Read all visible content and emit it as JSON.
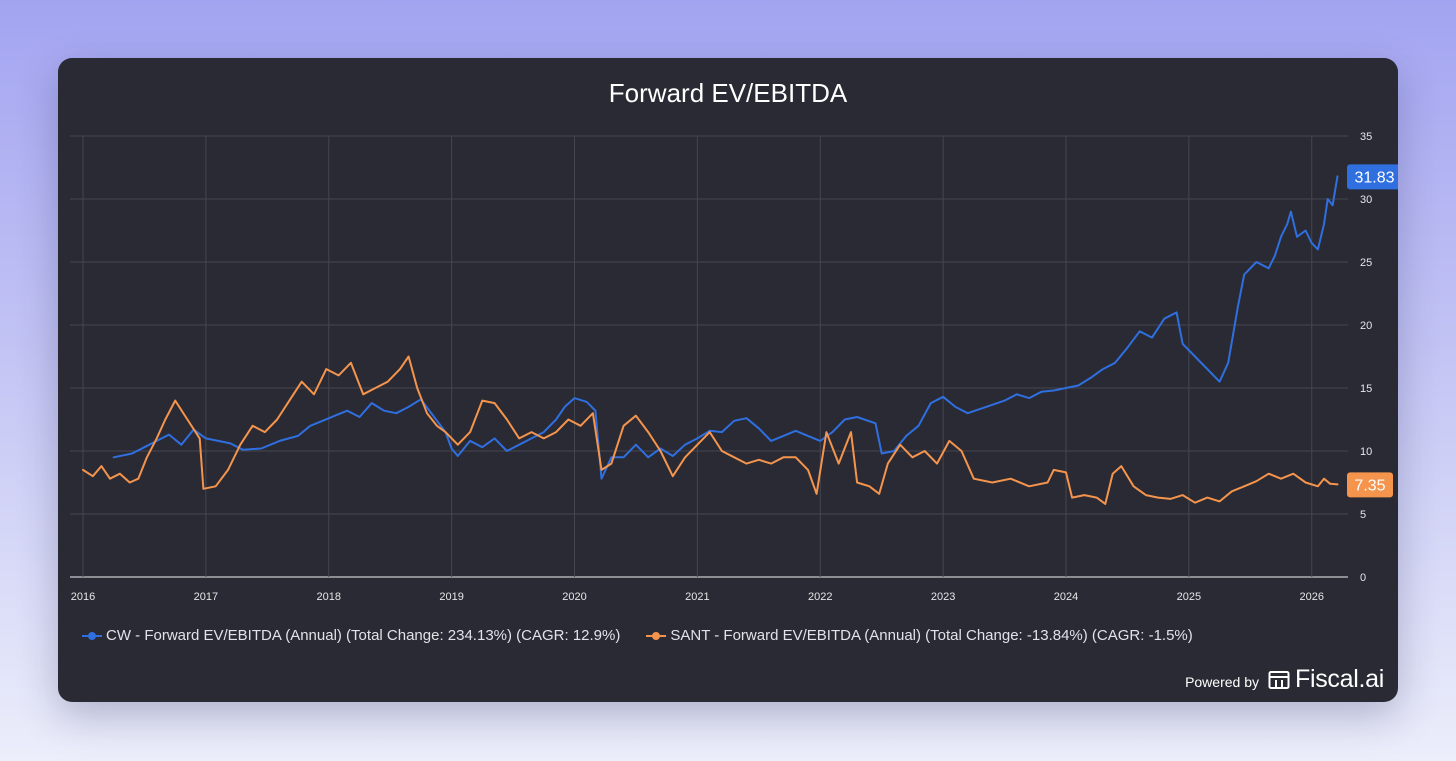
{
  "chart_data": {
    "type": "line",
    "title": "Forward EV/EBITDA",
    "xlabel": "",
    "ylabel": "",
    "xlim": [
      2016.0,
      2026.23
    ],
    "ylim": [
      0,
      35
    ],
    "x_ticks": [
      "2016",
      "2017",
      "2018",
      "2019",
      "2020",
      "2021",
      "2022",
      "2023",
      "2024",
      "2025",
      "2026"
    ],
    "y_ticks": [
      "0",
      "5",
      "10",
      "15",
      "20",
      "25",
      "30",
      "35"
    ],
    "grid": true,
    "legend_position": "bottom-left",
    "series": [
      {
        "name": "CW - Forward EV/EBITDA (Annual) (Total Change: 234.13%) (CAGR: 12.9%)",
        "color": "#2f6fe0",
        "last_value_label": "31.83",
        "points": [
          [
            2016.25,
            9.5
          ],
          [
            2016.4,
            9.8
          ],
          [
            2016.5,
            10.3
          ],
          [
            2016.6,
            10.8
          ],
          [
            2016.7,
            11.3
          ],
          [
            2016.8,
            10.5
          ],
          [
            2016.9,
            11.7
          ],
          [
            2017.0,
            11.0
          ],
          [
            2017.1,
            10.8
          ],
          [
            2017.2,
            10.6
          ],
          [
            2017.3,
            10.1
          ],
          [
            2017.45,
            10.2
          ],
          [
            2017.6,
            10.8
          ],
          [
            2017.75,
            11.2
          ],
          [
            2017.85,
            12.0
          ],
          [
            2017.95,
            12.4
          ],
          [
            2018.05,
            12.8
          ],
          [
            2018.15,
            13.2
          ],
          [
            2018.25,
            12.7
          ],
          [
            2018.35,
            13.8
          ],
          [
            2018.45,
            13.2
          ],
          [
            2018.55,
            13.0
          ],
          [
            2018.65,
            13.5
          ],
          [
            2018.75,
            14.1
          ],
          [
            2018.85,
            12.8
          ],
          [
            2018.95,
            11.5
          ],
          [
            2019.0,
            10.2
          ],
          [
            2019.05,
            9.6
          ],
          [
            2019.15,
            10.8
          ],
          [
            2019.25,
            10.3
          ],
          [
            2019.35,
            11.0
          ],
          [
            2019.45,
            10.0
          ],
          [
            2019.55,
            10.5
          ],
          [
            2019.65,
            11.0
          ],
          [
            2019.75,
            11.5
          ],
          [
            2019.85,
            12.5
          ],
          [
            2019.92,
            13.5
          ],
          [
            2020.0,
            14.2
          ],
          [
            2020.1,
            13.9
          ],
          [
            2020.17,
            13.2
          ],
          [
            2020.22,
            7.8
          ],
          [
            2020.3,
            9.5
          ],
          [
            2020.4,
            9.5
          ],
          [
            2020.5,
            10.5
          ],
          [
            2020.6,
            9.5
          ],
          [
            2020.7,
            10.2
          ],
          [
            2020.8,
            9.6
          ],
          [
            2020.9,
            10.5
          ],
          [
            2021.0,
            11.0
          ],
          [
            2021.1,
            11.6
          ],
          [
            2021.2,
            11.5
          ],
          [
            2021.3,
            12.4
          ],
          [
            2021.4,
            12.6
          ],
          [
            2021.5,
            11.8
          ],
          [
            2021.6,
            10.8
          ],
          [
            2021.7,
            11.2
          ],
          [
            2021.8,
            11.6
          ],
          [
            2021.9,
            11.2
          ],
          [
            2022.0,
            10.8
          ],
          [
            2022.1,
            11.5
          ],
          [
            2022.2,
            12.5
          ],
          [
            2022.3,
            12.7
          ],
          [
            2022.45,
            12.2
          ],
          [
            2022.5,
            9.8
          ],
          [
            2022.6,
            10.0
          ],
          [
            2022.7,
            11.2
          ],
          [
            2022.8,
            12.0
          ],
          [
            2022.9,
            13.8
          ],
          [
            2023.0,
            14.3
          ],
          [
            2023.1,
            13.5
          ],
          [
            2023.2,
            13.0
          ],
          [
            2023.35,
            13.5
          ],
          [
            2023.5,
            14.0
          ],
          [
            2023.6,
            14.5
          ],
          [
            2023.7,
            14.2
          ],
          [
            2023.8,
            14.7
          ],
          [
            2023.9,
            14.8
          ],
          [
            2024.0,
            15.0
          ],
          [
            2024.1,
            15.2
          ],
          [
            2024.2,
            15.8
          ],
          [
            2024.3,
            16.5
          ],
          [
            2024.4,
            17.0
          ],
          [
            2024.5,
            18.2
          ],
          [
            2024.6,
            19.5
          ],
          [
            2024.7,
            19.0
          ],
          [
            2024.8,
            20.5
          ],
          [
            2024.9,
            21.0
          ],
          [
            2024.95,
            18.5
          ],
          [
            2025.05,
            17.5
          ],
          [
            2025.15,
            16.5
          ],
          [
            2025.25,
            15.5
          ],
          [
            2025.32,
            17.0
          ],
          [
            2025.4,
            21.5
          ],
          [
            2025.45,
            24.0
          ],
          [
            2025.55,
            25.0
          ],
          [
            2025.65,
            24.5
          ],
          [
            2025.7,
            25.5
          ],
          [
            2025.75,
            27.0
          ],
          [
            2025.8,
            28.0
          ],
          [
            2025.83,
            29.0
          ],
          [
            2025.88,
            27.0
          ],
          [
            2025.95,
            27.5
          ],
          [
            2026.0,
            26.5
          ],
          [
            2026.05,
            26.0
          ],
          [
            2026.1,
            28.0
          ],
          [
            2026.13,
            30.0
          ],
          [
            2026.17,
            29.5
          ],
          [
            2026.21,
            31.8
          ]
        ]
      },
      {
        "name": "SANT - Forward EV/EBITDA (Annual) (Total Change: -13.84%) (CAGR: -1.5%)",
        "color": "#f5944d",
        "last_value_label": "7.35",
        "points": [
          [
            2016.0,
            8.5
          ],
          [
            2016.08,
            8.0
          ],
          [
            2016.15,
            8.8
          ],
          [
            2016.22,
            7.8
          ],
          [
            2016.3,
            8.2
          ],
          [
            2016.38,
            7.5
          ],
          [
            2016.45,
            7.8
          ],
          [
            2016.52,
            9.5
          ],
          [
            2016.6,
            11.0
          ],
          [
            2016.67,
            12.5
          ],
          [
            2016.75,
            14.0
          ],
          [
            2016.85,
            12.5
          ],
          [
            2016.95,
            11.0
          ],
          [
            2016.98,
            7.0
          ],
          [
            2017.08,
            7.2
          ],
          [
            2017.18,
            8.5
          ],
          [
            2017.28,
            10.5
          ],
          [
            2017.38,
            12.0
          ],
          [
            2017.48,
            11.5
          ],
          [
            2017.58,
            12.5
          ],
          [
            2017.68,
            14.0
          ],
          [
            2017.78,
            15.5
          ],
          [
            2017.88,
            14.5
          ],
          [
            2017.98,
            16.5
          ],
          [
            2018.08,
            16.0
          ],
          [
            2018.18,
            17.0
          ],
          [
            2018.28,
            14.5
          ],
          [
            2018.38,
            15.0
          ],
          [
            2018.48,
            15.5
          ],
          [
            2018.58,
            16.5
          ],
          [
            2018.65,
            17.5
          ],
          [
            2018.72,
            15.0
          ],
          [
            2018.8,
            13.0
          ],
          [
            2018.88,
            12.0
          ],
          [
            2018.95,
            11.5
          ],
          [
            2019.05,
            10.5
          ],
          [
            2019.15,
            11.5
          ],
          [
            2019.25,
            14.0
          ],
          [
            2019.35,
            13.8
          ],
          [
            2019.45,
            12.5
          ],
          [
            2019.55,
            11.0
          ],
          [
            2019.65,
            11.5
          ],
          [
            2019.75,
            11.0
          ],
          [
            2019.85,
            11.5
          ],
          [
            2019.95,
            12.5
          ],
          [
            2020.05,
            12.0
          ],
          [
            2020.15,
            13.0
          ],
          [
            2020.22,
            8.5
          ],
          [
            2020.3,
            9.0
          ],
          [
            2020.4,
            12.0
          ],
          [
            2020.5,
            12.8
          ],
          [
            2020.6,
            11.5
          ],
          [
            2020.7,
            10.0
          ],
          [
            2020.8,
            8.0
          ],
          [
            2020.9,
            9.5
          ],
          [
            2021.0,
            10.5
          ],
          [
            2021.1,
            11.5
          ],
          [
            2021.2,
            10.0
          ],
          [
            2021.3,
            9.5
          ],
          [
            2021.4,
            9.0
          ],
          [
            2021.5,
            9.3
          ],
          [
            2021.6,
            9.0
          ],
          [
            2021.7,
            9.5
          ],
          [
            2021.8,
            9.5
          ],
          [
            2021.9,
            8.5
          ],
          [
            2021.97,
            6.6
          ],
          [
            2022.05,
            11.5
          ],
          [
            2022.15,
            9.0
          ],
          [
            2022.25,
            11.5
          ],
          [
            2022.3,
            7.5
          ],
          [
            2022.4,
            7.2
          ],
          [
            2022.48,
            6.6
          ],
          [
            2022.55,
            9.0
          ],
          [
            2022.65,
            10.5
          ],
          [
            2022.75,
            9.5
          ],
          [
            2022.85,
            10.0
          ],
          [
            2022.95,
            9.0
          ],
          [
            2023.05,
            10.8
          ],
          [
            2023.15,
            10.0
          ],
          [
            2023.25,
            7.8
          ],
          [
            2023.4,
            7.5
          ],
          [
            2023.55,
            7.8
          ],
          [
            2023.7,
            7.2
          ],
          [
            2023.85,
            7.5
          ],
          [
            2023.9,
            8.5
          ],
          [
            2024.0,
            8.3
          ],
          [
            2024.05,
            6.3
          ],
          [
            2024.15,
            6.5
          ],
          [
            2024.25,
            6.3
          ],
          [
            2024.32,
            5.8
          ],
          [
            2024.38,
            8.2
          ],
          [
            2024.45,
            8.8
          ],
          [
            2024.55,
            7.2
          ],
          [
            2024.65,
            6.5
          ],
          [
            2024.75,
            6.3
          ],
          [
            2024.85,
            6.2
          ],
          [
            2024.95,
            6.5
          ],
          [
            2025.05,
            5.9
          ],
          [
            2025.15,
            6.3
          ],
          [
            2025.25,
            6.0
          ],
          [
            2025.35,
            6.8
          ],
          [
            2025.45,
            7.2
          ],
          [
            2025.55,
            7.6
          ],
          [
            2025.65,
            8.2
          ],
          [
            2025.75,
            7.8
          ],
          [
            2025.85,
            8.2
          ],
          [
            2025.95,
            7.5
          ],
          [
            2026.05,
            7.2
          ],
          [
            2026.1,
            7.8
          ],
          [
            2026.15,
            7.4
          ],
          [
            2026.21,
            7.35
          ]
        ]
      }
    ]
  },
  "branding": {
    "powered_by": "Powered by",
    "brand_name": "Fiscal.ai",
    "brand_icon": "fiscal-logo-icon"
  }
}
